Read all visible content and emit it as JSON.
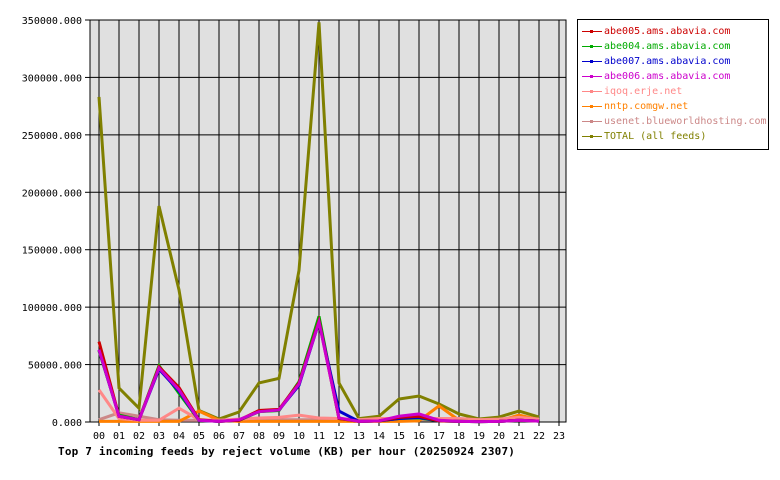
{
  "chart_data": {
    "type": "line",
    "title": "Top 7 incoming feeds by reject volume (KB) per hour (20250924 2307)",
    "xlabel": "",
    "ylabel": "",
    "ylim": [
      0,
      350000
    ],
    "grid": true,
    "legend_position": "right",
    "yticks": [
      "0.000",
      "50000.000",
      "100000.000",
      "150000.000",
      "200000.000",
      "250000.000",
      "300000.000",
      "350000.000"
    ],
    "x": [
      "00",
      "01",
      "02",
      "03",
      "04",
      "05",
      "06",
      "07",
      "08",
      "09",
      "10",
      "11",
      "12",
      "13",
      "14",
      "15",
      "16",
      "17",
      "18",
      "19",
      "20",
      "21",
      "22",
      "23"
    ],
    "series": [
      {
        "name": "abe005.ams.abavia.com",
        "color": "#cc0000",
        "values": [
          70000,
          5000,
          2000,
          48000,
          30000,
          2000,
          500,
          1500,
          10000,
          11000,
          34000,
          88000,
          3000,
          500,
          1000,
          4000,
          5000,
          1000,
          500,
          300,
          500,
          1500,
          800,
          null
        ]
      },
      {
        "name": "abe004.ams.abavia.com",
        "color": "#00aa00",
        "values": [
          62000,
          6000,
          2000,
          49000,
          25000,
          1500,
          500,
          1500,
          9000,
          10000,
          35000,
          92000,
          3000,
          500,
          1000,
          3000,
          3500,
          1000,
          500,
          300,
          500,
          1500,
          800,
          null
        ]
      },
      {
        "name": "abe007.ams.abavia.com",
        "color": "#0000cc",
        "values": [
          63000,
          5000,
          2000,
          46000,
          27000,
          1500,
          500,
          1500,
          9500,
          10500,
          32000,
          87000,
          9500,
          500,
          1000,
          3000,
          4000,
          1000,
          500,
          300,
          500,
          1500,
          800,
          null
        ]
      },
      {
        "name": "abe006.ams.abavia.com",
        "color": "#cc00cc",
        "values": [
          63000,
          5000,
          2000,
          47000,
          28000,
          1500,
          500,
          2000,
          9000,
          10500,
          33000,
          87000,
          3500,
          500,
          1000,
          5000,
          7000,
          1500,
          500,
          300,
          500,
          1500,
          800,
          null
        ]
      },
      {
        "name": "iqoq.erje.net",
        "color": "#ff8888",
        "values": [
          28000,
          3000,
          1500,
          1500,
          12000,
          2000,
          1500,
          2500,
          3500,
          4000,
          6000,
          3500,
          3000,
          2000,
          3000,
          3000,
          3000,
          3000,
          3000,
          2000,
          2500,
          4000,
          2500,
          null
        ]
      },
      {
        "name": "nntp.comgw.net",
        "color": "#ff8000",
        "values": [
          500,
          500,
          500,
          500,
          500,
          9500,
          1500,
          500,
          500,
          500,
          500,
          500,
          500,
          500,
          500,
          500,
          1000,
          14000,
          1500,
          500,
          1000,
          6000,
          2000,
          null
        ]
      },
      {
        "name": "usenet.blueworldhosting.com",
        "color": "#cc8888",
        "values": [
          2000,
          8000,
          5000,
          2000,
          1500,
          1500,
          1500,
          1500,
          2000,
          2000,
          2000,
          2000,
          2000,
          2000,
          2000,
          2000,
          2000,
          2000,
          2000,
          2000,
          2000,
          2000,
          2000,
          null
        ]
      },
      {
        "name": "TOTAL (all feeds)",
        "color": "#808000",
        "values": [
          283000,
          29600,
          12000,
          188000,
          115000,
          10000,
          2600,
          8700,
          34000,
          38000,
          132000,
          348000,
          34000,
          3000,
          5000,
          20000,
          22600,
          15700,
          7000,
          2600,
          4300,
          9500,
          4300,
          null
        ]
      }
    ]
  },
  "legend": {
    "items": [
      {
        "label": "abe005.ams.abavia.com",
        "color": "#cc0000"
      },
      {
        "label": "abe004.ams.abavia.com",
        "color": "#00aa00"
      },
      {
        "label": "abe007.ams.abavia.com",
        "color": "#0000cc"
      },
      {
        "label": "abe006.ams.abavia.com",
        "color": "#cc00cc"
      },
      {
        "label": "iqoq.erje.net",
        "color": "#ff8888"
      },
      {
        "label": "nntp.comgw.net",
        "color": "#ff8000"
      },
      {
        "label": "usenet.blueworldhosting.com",
        "color": "#cc8888"
      },
      {
        "label": "TOTAL (all feeds)",
        "color": "#808000"
      }
    ]
  },
  "caption": "Top 7 incoming feeds by reject volume (KB) per hour (20250924 2307)"
}
